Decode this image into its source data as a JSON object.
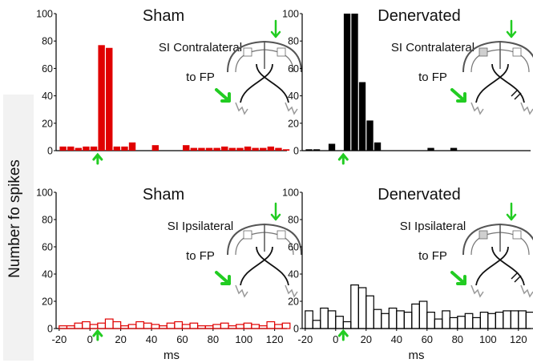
{
  "figure": {
    "ylabel": "Number fo spikes"
  },
  "chart_data": [
    {
      "type": "bar",
      "title": "Sham",
      "annotation": [
        "SI Contralateral",
        "to FP"
      ],
      "xlabel": "",
      "ylim": [
        0,
        100
      ],
      "yticks": [
        0,
        20,
        40,
        60,
        80,
        100
      ],
      "xlim": [
        -22,
        128
      ],
      "bar_width_ms": 5,
      "style": "filled",
      "color": "#e00000",
      "x": [
        -20,
        -15,
        -10,
        -5,
        0,
        5,
        10,
        15,
        20,
        25,
        30,
        35,
        40,
        45,
        50,
        55,
        60,
        65,
        70,
        75,
        80,
        85,
        90,
        95,
        100,
        105,
        110,
        115,
        120,
        125
      ],
      "values": [
        3,
        3,
        2,
        3,
        3,
        77,
        75,
        3,
        3,
        6,
        0,
        0,
        4,
        0,
        0,
        0,
        4,
        2,
        2,
        2,
        2,
        3,
        2,
        2,
        3,
        2,
        2,
        3,
        2,
        1
      ],
      "arrow_x": 5
    },
    {
      "type": "bar",
      "title": "Denervated",
      "annotation": [
        "SI Contralateral",
        "to FP"
      ],
      "xlabel": "",
      "ylim": [
        0,
        100
      ],
      "yticks": [
        0,
        20,
        40,
        60,
        80,
        100
      ],
      "xlim": [
        -22,
        128
      ],
      "bar_width_ms": 5,
      "style": "filled",
      "color": "#000000",
      "x": [
        -20,
        -15,
        -10,
        -5,
        0,
        5,
        10,
        15,
        20,
        25,
        30,
        35,
        40,
        45,
        50,
        55,
        60,
        65,
        70,
        75,
        80,
        85,
        90,
        95,
        100,
        105,
        110,
        115,
        120,
        125
      ],
      "values": [
        1,
        1,
        0,
        5,
        0,
        100,
        100,
        50,
        22,
        6,
        0,
        0,
        0,
        0,
        0,
        0,
        2,
        0,
        0,
        2,
        0,
        0,
        0,
        0,
        0,
        0,
        0,
        0,
        0,
        0
      ],
      "arrow_x": 5
    },
    {
      "type": "bar",
      "title": "Sham",
      "annotation": [
        "SI Ipsilateral",
        "to FP"
      ],
      "xlabel": "ms",
      "ylim": [
        0,
        100
      ],
      "yticks": [
        0,
        20,
        40,
        60,
        80,
        100
      ],
      "xlim": [
        -22,
        128
      ],
      "xticks": [
        -20,
        0,
        20,
        40,
        60,
        80,
        100,
        120
      ],
      "bar_width_ms": 5,
      "style": "outline",
      "color": "#e00000",
      "x": [
        -20,
        -15,
        -10,
        -5,
        0,
        5,
        10,
        15,
        20,
        25,
        30,
        35,
        40,
        45,
        50,
        55,
        60,
        65,
        70,
        75,
        80,
        85,
        90,
        95,
        100,
        105,
        110,
        115,
        120,
        125
      ],
      "values": [
        2,
        2,
        4,
        5,
        3,
        4,
        7,
        5,
        2,
        3,
        5,
        4,
        3,
        2,
        4,
        5,
        3,
        4,
        2,
        2,
        3,
        4,
        2,
        3,
        4,
        3,
        2,
        5,
        3,
        4
      ],
      "arrow_x": 5
    },
    {
      "type": "bar",
      "title": "Denervated",
      "annotation": [
        "SI Ipsilateral",
        "to FP"
      ],
      "xlabel": "ms",
      "ylim": [
        0,
        100
      ],
      "yticks": [
        0,
        20,
        40,
        60,
        80,
        100
      ],
      "xlim": [
        -22,
        128
      ],
      "xticks": [
        -20,
        0,
        20,
        40,
        60,
        80,
        100,
        120
      ],
      "bar_width_ms": 5,
      "style": "outline",
      "color": "#000000",
      "x": [
        -20,
        -15,
        -10,
        -5,
        0,
        5,
        10,
        15,
        20,
        25,
        30,
        35,
        40,
        45,
        50,
        55,
        60,
        65,
        70,
        75,
        80,
        85,
        90,
        95,
        100,
        105,
        110,
        115,
        120,
        125
      ],
      "values": [
        13,
        6,
        15,
        13,
        9,
        5,
        32,
        30,
        24,
        14,
        11,
        15,
        13,
        12,
        18,
        20,
        12,
        7,
        13,
        8,
        9,
        11,
        8,
        12,
        11,
        12,
        13,
        13,
        13,
        12
      ],
      "arrow_x": 5
    }
  ]
}
